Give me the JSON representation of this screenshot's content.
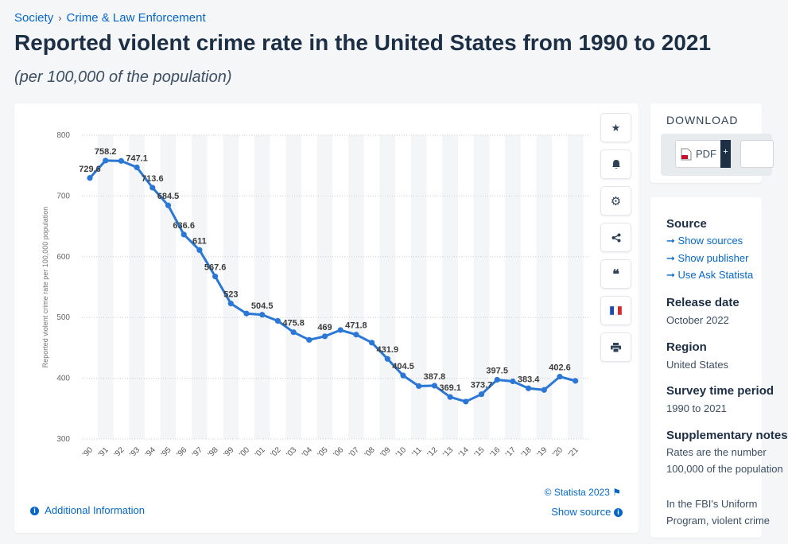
{
  "breadcrumb": {
    "item1": "Society",
    "separator": "›",
    "item2": "Crime & Law Enforcement"
  },
  "title": "Reported violent crime rate in the United States from 1990 to 2021",
  "subtitle": "(per 100,000 of the population)",
  "toolbar": {
    "favorite_icon": "★",
    "alert_icon": "🔔",
    "settings_icon": "⚙",
    "share_icon": "share",
    "cite_icon": "❝",
    "language_icon": "french-flag",
    "print_icon": "🖨"
  },
  "footer": {
    "credit": "© Statista 2023",
    "show_source": "Show source",
    "additional_info": "Additional Information",
    "info_icon": "i"
  },
  "download": {
    "title": "DOWNLOAD",
    "pdf_label": "PDF",
    "pdf_plus": "+"
  },
  "info": {
    "source_heading": "Source",
    "links": [
      "Show sources",
      "Show publisher",
      "Use Ask Statista"
    ],
    "link_arrow": "➞",
    "release_heading": "Release date",
    "release_value": "October 2022",
    "region_heading": "Region",
    "region_value": "United States",
    "survey_heading": "Survey time period",
    "survey_value": "1990 to 2021",
    "supp_heading": "Supplementary notes",
    "supp_line1": "Rates are the number",
    "supp_line2": "100,000 of the population",
    "more_line1": "In the FBI's Uniform",
    "more_line2": "Program, violent crime"
  },
  "chart_data": {
    "type": "line",
    "title": "Reported violent crime rate in the United States from 1990 to 2021",
    "ylabel": "Reported violent crime rate per 100,000 population",
    "xlabel": "",
    "ylim": [
      300,
      800
    ],
    "yticks": [
      300,
      400,
      500,
      600,
      700,
      800
    ],
    "categories": [
      "'90",
      "'91",
      "'92",
      "'93",
      "'94",
      "'95",
      "'96",
      "'97",
      "'98",
      "'99",
      "'00",
      "'01",
      "'02",
      "'03",
      "'04",
      "'05",
      "'06",
      "'07",
      "'08",
      "'09",
      "'10",
      "'11",
      "'12",
      "'13",
      "'14",
      "'15",
      "'16",
      "'17",
      "'18",
      "'19",
      "'20",
      "'21"
    ],
    "values": [
      729.6,
      758.2,
      757.7,
      747.1,
      713.6,
      684.5,
      636.6,
      611,
      567.6,
      523,
      506.5,
      504.5,
      494.4,
      475.8,
      463.2,
      469,
      479.3,
      471.8,
      458.6,
      431.9,
      404.5,
      387.1,
      387.8,
      369.1,
      361.6,
      373.7,
      397.5,
      394.9,
      383.4,
      380.8,
      402.6,
      395.7
    ],
    "labels": [
      "729.6",
      "758.2",
      "",
      "747.1",
      "713.6",
      "684.5",
      "636.6",
      "611",
      "567.6",
      "523",
      "",
      "504.5",
      "",
      "475.8",
      "",
      "469",
      "",
      "471.8",
      "",
      "431.9",
      "404.5",
      "",
      "387.8",
      "369.1",
      "",
      "373.7",
      "397.5",
      "",
      "383.4",
      "",
      "402.6",
      ""
    ],
    "line_color": "#2b77d5"
  }
}
